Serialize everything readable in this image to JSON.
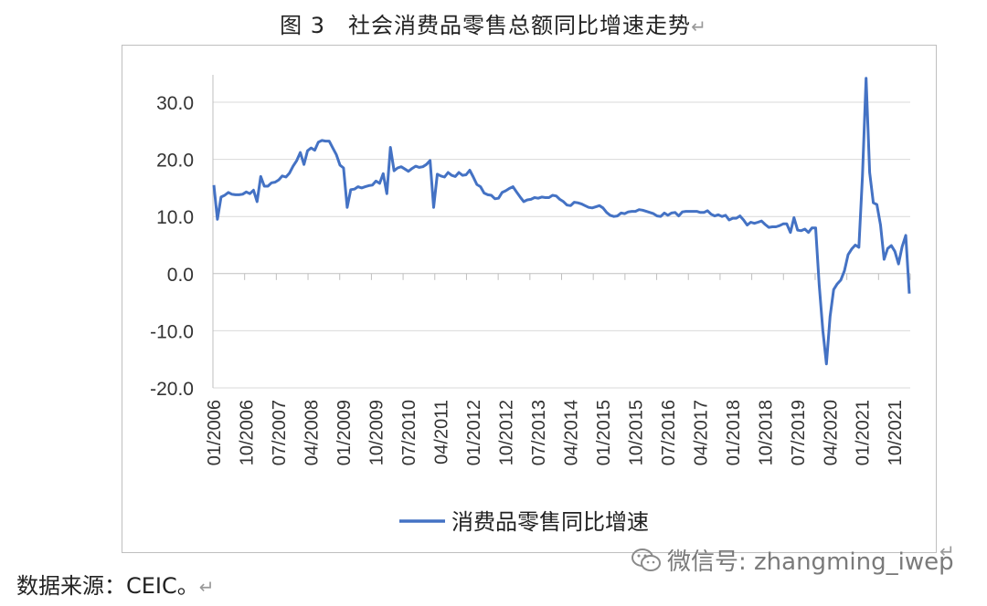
{
  "figure": {
    "title": "图 3　社会消费品零售总额同比增速走势",
    "title_return_mark": "↵",
    "source": "数据来源：CEIC。",
    "source_return_mark": "↵",
    "corner_return_mark": "↵",
    "watermark": "微信号: zhangming_iwep"
  },
  "chart_data": {
    "type": "line",
    "title": "",
    "xlabel": "",
    "ylabel": "",
    "ylim": [
      -20,
      35
    ],
    "yticks": [
      "30.0",
      "20.0",
      "10.0",
      "0.0",
      "-10.0",
      "-20.0"
    ],
    "ytick_values": [
      30,
      20,
      10,
      0,
      -10,
      -20
    ],
    "xtick_labels": [
      "01/2006",
      "10/2006",
      "07/2007",
      "04/2008",
      "01/2009",
      "10/2009",
      "07/2010",
      "04/2011",
      "01/2012",
      "10/2012",
      "07/2013",
      "04/2014",
      "01/2015",
      "10/2015",
      "07/2016",
      "04/2017",
      "01/2018",
      "10/2018",
      "07/2019",
      "04/2020",
      "01/2021",
      "10/2021"
    ],
    "legend": "bottom",
    "grid": "horizontal",
    "line_color": "#4472C4",
    "series": [
      {
        "name": "消费品零售同比增速",
        "x_start": "01/2006",
        "frequency": "monthly",
        "values": [
          15.5,
          9.5,
          13.4,
          13.7,
          14.2,
          13.9,
          13.8,
          13.8,
          13.9,
          14.3,
          14.0,
          14.6,
          12.6,
          17.0,
          15.3,
          15.3,
          15.9,
          16.0,
          16.4,
          17.1,
          16.9,
          17.6,
          18.8,
          19.8,
          21.2,
          19.1,
          21.5,
          22.0,
          21.6,
          23.0,
          23.3,
          23.2,
          23.2,
          22.0,
          20.8,
          19.0,
          18.5,
          11.6,
          14.7,
          14.8,
          15.2,
          15.0,
          15.2,
          15.4,
          15.5,
          16.2,
          15.8,
          17.5,
          14.0,
          22.1,
          18.0,
          18.5,
          18.7,
          18.3,
          17.9,
          18.4,
          18.8,
          18.6,
          18.7,
          19.1,
          19.8,
          11.6,
          17.4,
          17.1,
          16.9,
          17.7,
          17.2,
          17.0,
          17.7,
          17.2,
          17.3,
          18.1,
          16.9,
          15.6,
          15.2,
          14.1,
          13.8,
          13.7,
          13.1,
          13.2,
          14.2,
          14.5,
          14.9,
          15.2,
          14.3,
          13.4,
          12.6,
          12.9,
          13.0,
          13.3,
          13.2,
          13.4,
          13.3,
          13.3,
          13.7,
          13.6,
          13.0,
          12.6,
          12.0,
          11.9,
          12.5,
          12.4,
          12.2,
          11.9,
          11.6,
          11.5,
          11.7,
          11.9,
          11.5,
          10.7,
          10.2,
          10.0,
          10.1,
          10.6,
          10.5,
          10.8,
          10.9,
          10.9,
          11.2,
          11.1,
          10.9,
          10.7,
          10.5,
          10.1,
          10.0,
          10.6,
          10.2,
          10.6,
          10.7,
          10.1,
          10.8,
          10.9,
          10.9,
          10.9,
          10.9,
          10.7,
          10.7,
          11.0,
          10.4,
          10.1,
          10.3,
          10.0,
          10.2,
          9.4,
          9.7,
          9.7,
          10.1,
          9.4,
          8.5,
          9.0,
          8.8,
          9.0,
          9.2,
          8.6,
          8.1,
          8.2,
          8.2,
          8.4,
          8.7,
          8.7,
          7.2,
          9.8,
          7.6,
          7.5,
          7.8,
          7.2,
          8.0,
          8.0,
          -2.0,
          -10.0,
          -15.8,
          -7.5,
          -2.8,
          -1.8,
          -1.1,
          0.5,
          3.3,
          4.3,
          5.0,
          4.6,
          17.0,
          34.2,
          17.7,
          12.4,
          12.1,
          8.5,
          2.5,
          4.4,
          4.9,
          3.9,
          1.7,
          4.7,
          6.7,
          -3.5
        ]
      }
    ]
  }
}
